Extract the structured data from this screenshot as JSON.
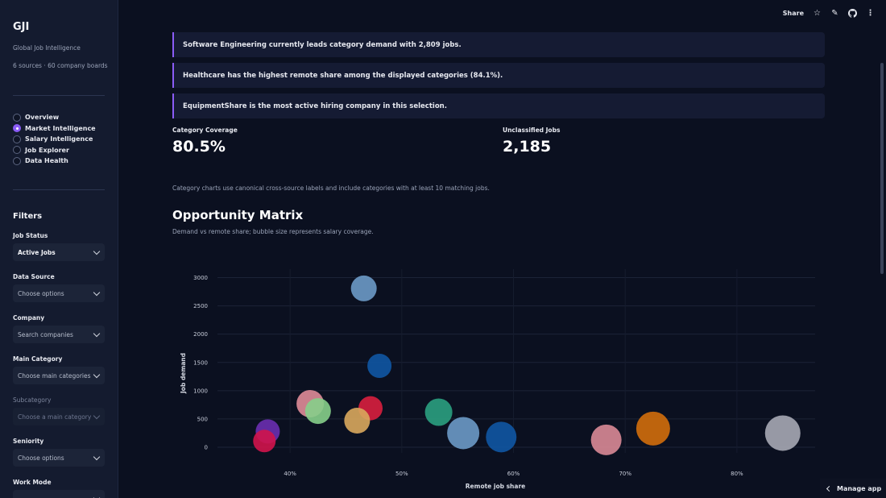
{
  "sidebar": {
    "brand": "GJI",
    "subtitle": "Global Job Intelligence",
    "sources": "6 sources · 60 company boards",
    "nav": [
      {
        "label": "Overview",
        "selected": false
      },
      {
        "label": "Market Intelligence",
        "selected": true
      },
      {
        "label": "Salary Intelligence",
        "selected": false
      },
      {
        "label": "Job Explorer",
        "selected": false
      },
      {
        "label": "Data Health",
        "selected": false
      }
    ],
    "filters_title": "Filters",
    "filters": [
      {
        "label": "Job Status",
        "value": "Active Jobs",
        "filled": true,
        "disabled": false
      },
      {
        "label": "Data Source",
        "value": "Choose options",
        "filled": false,
        "disabled": false
      },
      {
        "label": "Company",
        "value": "Search companies",
        "filled": false,
        "disabled": false
      },
      {
        "label": "Main Category",
        "value": "Choose main categories",
        "filled": false,
        "disabled": false
      },
      {
        "label": "Subcategory",
        "value": "Choose a main category",
        "filled": false,
        "disabled": true
      },
      {
        "label": "Seniority",
        "value": "Choose options",
        "filled": false,
        "disabled": false
      },
      {
        "label": "Work Mode",
        "value": "",
        "filled": false,
        "disabled": false
      }
    ]
  },
  "topbar": {
    "share_label": "Share",
    "icons": [
      "star-icon",
      "pencil-icon",
      "github-icon",
      "more-icon"
    ]
  },
  "insights": [
    "Software Engineering currently leads category demand with 2,809 jobs.",
    "Healthcare has the highest remote share among the displayed categories (84.1%).",
    "EquipmentShare is the most active hiring company in this selection."
  ],
  "metrics": [
    {
      "label": "Category Coverage",
      "value": "80.5%"
    },
    {
      "label": "Unclassified Jobs",
      "value": "2,185"
    }
  ],
  "note": "Category charts use canonical cross-source labels and include categories with at least 10 matching jobs.",
  "section": {
    "title": "Opportunity Matrix",
    "subtitle": "Demand vs remote share; bubble size represents salary coverage."
  },
  "chart_data": {
    "type": "scatter",
    "xlabel": "Remote job share",
    "ylabel": "Job demand",
    "x_ticks": [
      "40%",
      "50%",
      "60%",
      "70%",
      "80%"
    ],
    "x_tick_values": [
      40,
      50,
      60,
      70,
      80
    ],
    "y_ticks": [
      "0",
      "500",
      "1000",
      "1500",
      "2000",
      "2500",
      "3000"
    ],
    "y_tick_values": [
      0,
      500,
      1000,
      1500,
      2000,
      2500,
      3000
    ],
    "xlim": [
      33.5,
      87
    ],
    "ylim": [
      -100,
      3150
    ],
    "grid": true,
    "points": [
      {
        "x": 46.6,
        "y": 2809,
        "size": 16,
        "color": "#6c9ac6"
      },
      {
        "x": 48.0,
        "y": 1440,
        "size": 15,
        "color": "#0f57a3"
      },
      {
        "x": 41.8,
        "y": 770,
        "size": 17,
        "color": "#df8c98"
      },
      {
        "x": 42.5,
        "y": 640,
        "size": 16,
        "color": "#86cf89"
      },
      {
        "x": 47.2,
        "y": 690,
        "size": 15,
        "color": "#d81f3e"
      },
      {
        "x": 46.0,
        "y": 470,
        "size": 16,
        "color": "#d9a95d"
      },
      {
        "x": 53.3,
        "y": 620,
        "size": 17,
        "color": "#2aa07f"
      },
      {
        "x": 38.0,
        "y": 280,
        "size": 15,
        "color": "#6a2fb0"
      },
      {
        "x": 37.7,
        "y": 110,
        "size": 14,
        "color": "#d0144b"
      },
      {
        "x": 55.5,
        "y": 250,
        "size": 20,
        "color": "#6b9ac7"
      },
      {
        "x": 58.9,
        "y": 180,
        "size": 19,
        "color": "#0f57a3"
      },
      {
        "x": 68.3,
        "y": 130,
        "size": 19,
        "color": "#d98a96"
      },
      {
        "x": 72.5,
        "y": 330,
        "size": 21,
        "color": "#d26e0b"
      },
      {
        "x": 84.1,
        "y": 250,
        "size": 22,
        "color": "#a6a9b4"
      }
    ]
  }
}
